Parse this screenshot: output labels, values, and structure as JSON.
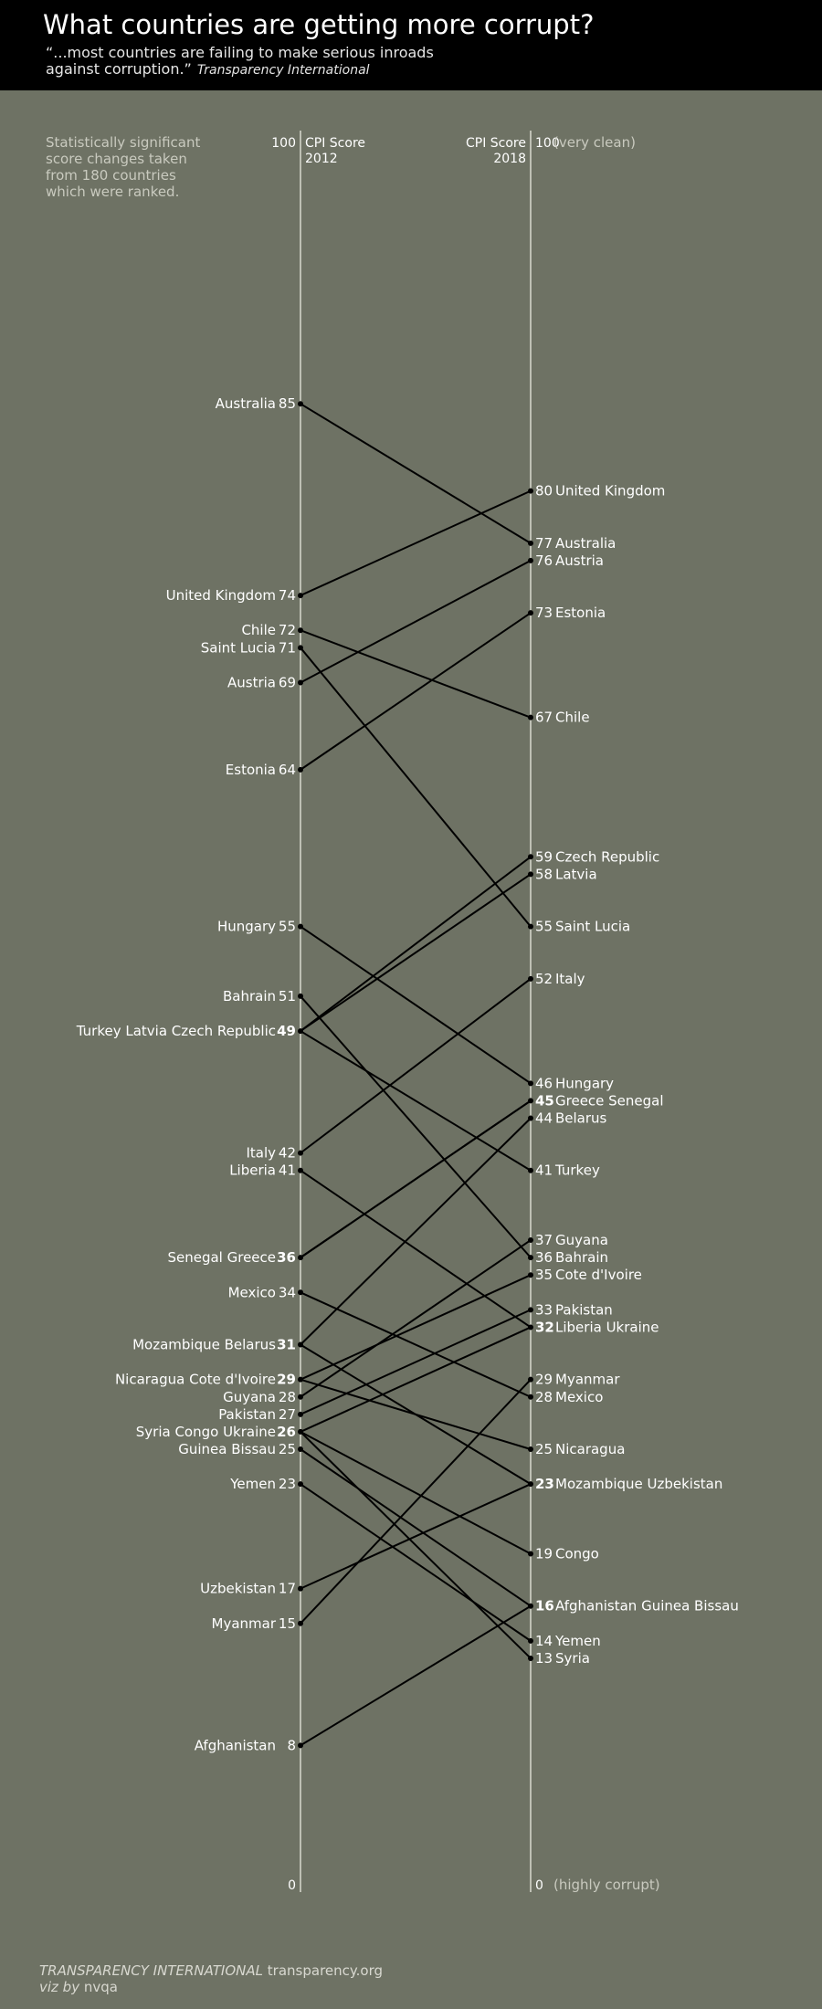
{
  "header": {
    "title": "What countries are getting more corrupt?",
    "quote_line1": "“...most countries are failing to make serious inroads",
    "quote_line2": "against corruption.”",
    "quote_source": "Transparency International"
  },
  "note": {
    "line1": "Statistically significant",
    "line2": "score changes taken",
    "line3": "from 180 countries",
    "line4": "which were ranked."
  },
  "footer": {
    "org": "TRANSPARENCY INTERNATIONAL",
    "site": "transparency.org",
    "viz_by": "viz by",
    "author": "nvqa"
  },
  "chart_data": {
    "type": "slope",
    "axes": {
      "left": {
        "label_line1": "CPI Score",
        "label_line2": "2012",
        "top": "100",
        "bottom": "0"
      },
      "right": {
        "label_line1": "CPI Score",
        "label_line2": "2018",
        "top": "100",
        "bottom": "0",
        "top_note": "(very clean)",
        "bottom_note": "(highly corrupt)"
      }
    },
    "ylim": [
      0,
      100
    ],
    "left_labels": [
      {
        "value": 85,
        "names": "Australia",
        "bold": false
      },
      {
        "value": 74,
        "names": "United Kingdom",
        "bold": false
      },
      {
        "value": 72,
        "names": "Chile",
        "bold": false
      },
      {
        "value": 71,
        "names": "Saint Lucia",
        "bold": false
      },
      {
        "value": 69,
        "names": "Austria",
        "bold": false
      },
      {
        "value": 64,
        "names": "Estonia",
        "bold": false
      },
      {
        "value": 55,
        "names": "Hungary",
        "bold": false
      },
      {
        "value": 51,
        "names": "Bahrain",
        "bold": false
      },
      {
        "value": 49,
        "names": "Turkey Latvia Czech Republic",
        "bold": true
      },
      {
        "value": 42,
        "names": "Italy",
        "bold": false
      },
      {
        "value": 41,
        "names": "Liberia",
        "bold": false
      },
      {
        "value": 36,
        "names": "Senegal Greece",
        "bold": true
      },
      {
        "value": 34,
        "names": "Mexico",
        "bold": false
      },
      {
        "value": 31,
        "names": "Mozambique Belarus",
        "bold": true
      },
      {
        "value": 29,
        "names": "Nicaragua Cote d'Ivoire",
        "bold": true
      },
      {
        "value": 28,
        "names": "Guyana",
        "bold": false
      },
      {
        "value": 27,
        "names": "Pakistan",
        "bold": false
      },
      {
        "value": 26,
        "names": "Syria Congo Ukraine",
        "bold": true
      },
      {
        "value": 25,
        "names": "Guinea Bissau",
        "bold": false
      },
      {
        "value": 23,
        "names": "Yemen",
        "bold": false
      },
      {
        "value": 17,
        "names": "Uzbekistan",
        "bold": false
      },
      {
        "value": 15,
        "names": "Myanmar",
        "bold": false
      },
      {
        "value": 8,
        "names": "Afghanistan",
        "bold": false
      }
    ],
    "right_labels": [
      {
        "value": 80,
        "names": "United Kingdom",
        "bold": false
      },
      {
        "value": 77,
        "names": "Australia",
        "bold": false
      },
      {
        "value": 76,
        "names": "Austria",
        "bold": false
      },
      {
        "value": 73,
        "names": "Estonia",
        "bold": false
      },
      {
        "value": 67,
        "names": "Chile",
        "bold": false
      },
      {
        "value": 59,
        "names": "Czech Republic",
        "bold": false
      },
      {
        "value": 58,
        "names": "Latvia",
        "bold": false
      },
      {
        "value": 55,
        "names": "Saint Lucia",
        "bold": false
      },
      {
        "value": 52,
        "names": "Italy",
        "bold": false
      },
      {
        "value": 46,
        "names": "Hungary",
        "bold": false
      },
      {
        "value": 45,
        "names": "Greece Senegal",
        "bold": true
      },
      {
        "value": 44,
        "names": "Belarus",
        "bold": false
      },
      {
        "value": 41,
        "names": "Turkey",
        "bold": false
      },
      {
        "value": 37,
        "names": "Guyana",
        "bold": false
      },
      {
        "value": 36,
        "names": "Bahrain",
        "bold": false
      },
      {
        "value": 35,
        "names": "Cote d'Ivoire",
        "bold": false
      },
      {
        "value": 33,
        "names": "Pakistan",
        "bold": false
      },
      {
        "value": 32,
        "names": "Liberia Ukraine",
        "bold": true
      },
      {
        "value": 29,
        "names": "Myanmar",
        "bold": false
      },
      {
        "value": 28,
        "names": "Mexico",
        "bold": false
      },
      {
        "value": 25,
        "names": "Nicaragua",
        "bold": false
      },
      {
        "value": 23,
        "names": "Mozambique Uzbekistan",
        "bold": true
      },
      {
        "value": 19,
        "names": "Congo",
        "bold": false
      },
      {
        "value": 16,
        "names": "Afghanistan Guinea Bissau",
        "bold": true
      },
      {
        "value": 14,
        "names": "Yemen",
        "bold": false
      },
      {
        "value": 13,
        "names": "Syria",
        "bold": false
      }
    ],
    "series": [
      {
        "country": "Australia",
        "y2012": 85,
        "y2018": 77
      },
      {
        "country": "United Kingdom",
        "y2012": 74,
        "y2018": 80
      },
      {
        "country": "Chile",
        "y2012": 72,
        "y2018": 67
      },
      {
        "country": "Saint Lucia",
        "y2012": 71,
        "y2018": 55
      },
      {
        "country": "Austria",
        "y2012": 69,
        "y2018": 76
      },
      {
        "country": "Estonia",
        "y2012": 64,
        "y2018": 73
      },
      {
        "country": "Hungary",
        "y2012": 55,
        "y2018": 46
      },
      {
        "country": "Bahrain",
        "y2012": 51,
        "y2018": 36
      },
      {
        "country": "Turkey",
        "y2012": 49,
        "y2018": 41
      },
      {
        "country": "Latvia",
        "y2012": 49,
        "y2018": 58
      },
      {
        "country": "Czech Republic",
        "y2012": 49,
        "y2018": 59
      },
      {
        "country": "Italy",
        "y2012": 42,
        "y2018": 52
      },
      {
        "country": "Liberia",
        "y2012": 41,
        "y2018": 32
      },
      {
        "country": "Senegal",
        "y2012": 36,
        "y2018": 45
      },
      {
        "country": "Greece",
        "y2012": 36,
        "y2018": 45
      },
      {
        "country": "Mexico",
        "y2012": 34,
        "y2018": 28
      },
      {
        "country": "Mozambique",
        "y2012": 31,
        "y2018": 23
      },
      {
        "country": "Belarus",
        "y2012": 31,
        "y2018": 44
      },
      {
        "country": "Nicaragua",
        "y2012": 29,
        "y2018": 25
      },
      {
        "country": "Cote d'Ivoire",
        "y2012": 29,
        "y2018": 35
      },
      {
        "country": "Guyana",
        "y2012": 28,
        "y2018": 37
      },
      {
        "country": "Pakistan",
        "y2012": 27,
        "y2018": 33
      },
      {
        "country": "Syria",
        "y2012": 26,
        "y2018": 13
      },
      {
        "country": "Congo",
        "y2012": 26,
        "y2018": 19
      },
      {
        "country": "Ukraine",
        "y2012": 26,
        "y2018": 32
      },
      {
        "country": "Guinea Bissau",
        "y2012": 25,
        "y2018": 16
      },
      {
        "country": "Yemen",
        "y2012": 23,
        "y2018": 14
      },
      {
        "country": "Uzbekistan",
        "y2012": 17,
        "y2018": 23
      },
      {
        "country": "Myanmar",
        "y2012": 15,
        "y2018": 29
      },
      {
        "country": "Afghanistan",
        "y2012": 8,
        "y2018": 16
      }
    ],
    "colors": {
      "background": "#6e7264",
      "line": "#000000",
      "axis": "#d9d9cf",
      "text": "#ffffff"
    }
  }
}
